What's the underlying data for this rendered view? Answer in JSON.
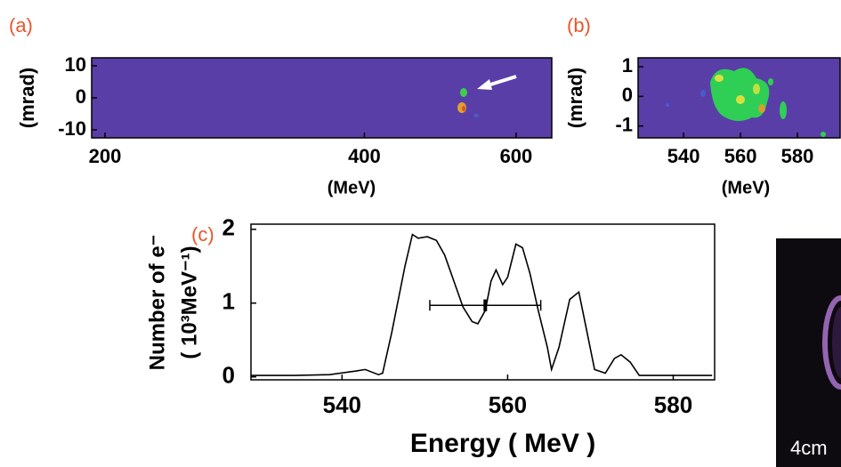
{
  "chart_data": [
    {
      "type": "image",
      "label": "(a)",
      "x_label": "(MeV)",
      "y_label": "(mrad)",
      "xscale": "log",
      "xlim": [
        193,
        660
      ],
      "xticks": [
        200,
        400,
        600
      ],
      "ylim": [
        -12.5,
        12.5
      ],
      "yticks": [
        10,
        0,
        -10
      ],
      "background": "#5a3ea8"
    },
    {
      "type": "image",
      "label": "(b)",
      "x_label": "(MeV)",
      "y_label": "(mrad)",
      "xlim": [
        524,
        595
      ],
      "xticks": [
        540,
        560,
        580
      ],
      "ylim": [
        -1.4,
        1.3
      ],
      "yticks": [
        1,
        0,
        -1
      ],
      "background": "#5a3ea8"
    },
    {
      "type": "line",
      "label": "(c)",
      "x_label": "Energy ( MeV )",
      "y_label": [
        "Number of e⁻",
        "( 10³MeV⁻¹)"
      ],
      "xlim": [
        529,
        585
      ],
      "xticks": [
        540,
        560,
        580
      ],
      "ylim": [
        -0.04,
        2.07
      ],
      "yticks": [
        0,
        1,
        2
      ],
      "color": "#000000",
      "x": [
        529,
        534.2,
        538.5,
        541.7,
        542.8,
        544.4,
        544.9,
        546,
        547.6,
        548.5,
        549.2,
        550.3,
        551.4,
        552.4,
        553.5,
        554.6,
        555.7,
        556.4,
        557.3,
        558,
        558.6,
        559.4,
        560,
        561,
        561.8,
        562.7,
        563.7,
        564.8,
        565.3,
        566.2,
        567.5,
        568.6,
        569.6,
        570.5,
        571.8,
        572.9,
        573.7,
        574.8,
        575.9,
        580.4,
        584.7
      ],
      "values": [
        0.02,
        0.02,
        0.03,
        0.08,
        0.1,
        0.03,
        0.05,
        0.6,
        1.5,
        1.93,
        1.88,
        1.9,
        1.85,
        1.65,
        1.3,
        0.95,
        0.75,
        0.72,
        0.9,
        1.3,
        1.45,
        1.25,
        1.35,
        1.8,
        1.75,
        1.4,
        0.9,
        0.4,
        0.1,
        0.4,
        1.05,
        1.15,
        0.6,
        0.1,
        0.05,
        0.25,
        0.3,
        0.2,
        0.02,
        0.02,
        0.02
      ],
      "errorbar": {
        "x": 557.3,
        "y": 0.97,
        "xerr": 6.7,
        "yerr": 0.08
      }
    }
  ],
  "photo": {
    "caption": "4cm"
  }
}
